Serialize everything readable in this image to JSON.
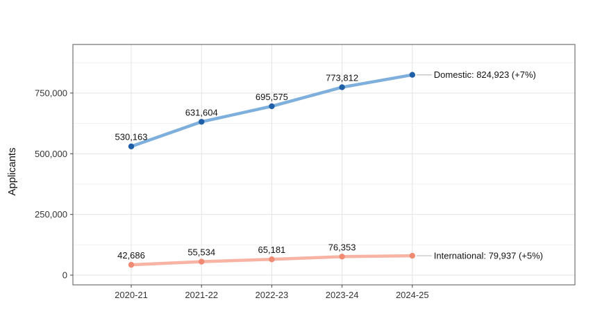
{
  "chart_data": {
    "type": "line",
    "title": "",
    "xlabel": "",
    "ylabel": "Applicants",
    "categories": [
      "2020-21",
      "2021-22",
      "2022-23",
      "2023-24",
      "2024-25"
    ],
    "ylim": [
      -40000,
      950000
    ],
    "yticks": [
      0,
      250000,
      500000,
      750000
    ],
    "ytick_labels": [
      "0",
      "250,000",
      "500,000",
      "750,000"
    ],
    "grid": true,
    "series": [
      {
        "values": [
          530163,
          631604,
          695575,
          773812,
          824923
        ],
        "point_labels": [
          "530,163",
          "631,604",
          "695,575",
          "773,812",
          ""
        ],
        "end_label": "Domestic: 824,923 (+7%)",
        "line_color": "#7fb0dd",
        "point_color": "#1f5fa8"
      },
      {
        "values": [
          42686,
          55534,
          65181,
          76353,
          79937
        ],
        "point_labels": [
          "42,686",
          "55,534",
          "65,181",
          "76,353",
          ""
        ],
        "end_label": "International: 79,937 (+5%)",
        "line_color": "#f7b3a3",
        "point_color": "#f08a72"
      }
    ]
  }
}
